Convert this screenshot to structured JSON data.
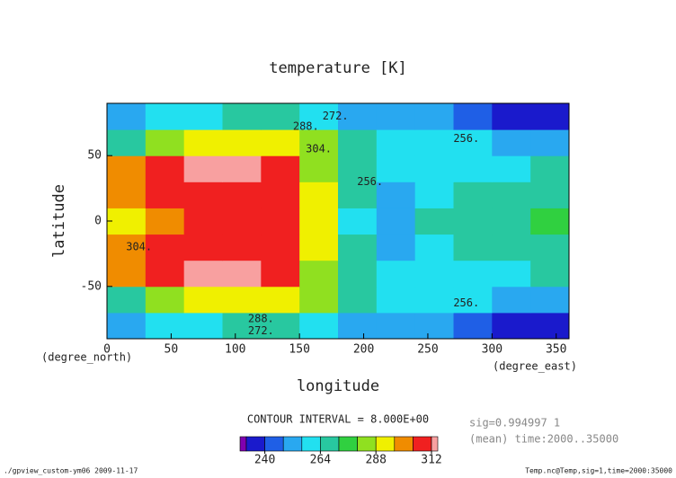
{
  "chart_data": {
    "type": "contour",
    "title": "temperature [K]",
    "x_label": "longitude",
    "x_unit": "(degree_east)",
    "y_label": "latitude",
    "y_unit": "(degree_north)",
    "xlim": [
      0,
      360
    ],
    "ylim": [
      -90,
      90
    ],
    "xticks": [
      0,
      50,
      100,
      150,
      200,
      250,
      300,
      350
    ],
    "yticks": [
      -50,
      0,
      50
    ],
    "x": [
      15,
      45,
      75,
      105,
      135,
      165,
      195,
      225,
      255,
      285,
      315,
      345
    ],
    "y": [
      -80,
      -60,
      -40,
      -20,
      0,
      20,
      40,
      60,
      80
    ],
    "z": [
      [
        250,
        258,
        262,
        266,
        270,
        262,
        254,
        250,
        248,
        246,
        238,
        238
      ],
      [
        270,
        282,
        290,
        292,
        292,
        282,
        266,
        258,
        256,
        256,
        252,
        250
      ],
      [
        300,
        310,
        316,
        314,
        304,
        286,
        266,
        262,
        258,
        258,
        262,
        266
      ],
      [
        296,
        306,
        310,
        310,
        306,
        290,
        264,
        254,
        260,
        264,
        266,
        270
      ],
      [
        290,
        300,
        308,
        308,
        306,
        292,
        262,
        254,
        264,
        268,
        270,
        272
      ],
      [
        296,
        306,
        310,
        310,
        306,
        290,
        264,
        254,
        260,
        264,
        266,
        270
      ],
      [
        300,
        310,
        316,
        314,
        304,
        286,
        266,
        262,
        258,
        258,
        262,
        266
      ],
      [
        270,
        282,
        290,
        292,
        292,
        282,
        266,
        258,
        256,
        256,
        252,
        250
      ],
      [
        250,
        258,
        262,
        266,
        270,
        262,
        254,
        250,
        248,
        246,
        238,
        238
      ]
    ],
    "levels": [
      232,
      240,
      248,
      256,
      264,
      272,
      280,
      288,
      296,
      304,
      312
    ],
    "colors": [
      "#8000b0",
      "#1a1acc",
      "#1f5fe6",
      "#29a8f0",
      "#22e0f0",
      "#28c8a0",
      "#30d040",
      "#90e020",
      "#f0f000",
      "#f08c00",
      "#f02020",
      "#f8a0a0"
    ],
    "colorbar_ticks": [
      240,
      264,
      288,
      312
    ],
    "contour_interval": "CONTOUR INTERVAL = 8.000E+00",
    "contour_labels": [
      {
        "label": "288.",
        "lon": 155,
        "lat": 72
      },
      {
        "label": "272.",
        "lon": 178,
        "lat": 80
      },
      {
        "label": "304.",
        "lon": 165,
        "lat": 55
      },
      {
        "label": "256.",
        "lon": 280,
        "lat": 63
      },
      {
        "label": "256.",
        "lon": 205,
        "lat": 30
      },
      {
        "label": "304.",
        "lon": 25,
        "lat": -20
      },
      {
        "label": "256.",
        "lon": 280,
        "lat": -63
      },
      {
        "label": "288.",
        "lon": 120,
        "lat": -75
      },
      {
        "label": "272.",
        "lon": 120,
        "lat": -84
      }
    ],
    "info": [
      "sig=0.994997 1",
      "(mean) time:2000..35000"
    ],
    "footer_left": "./gpview_custom-ym06  2009-11-17",
    "footer_right": "Temp.nc@Temp,sig=1,time=2000:35000"
  }
}
